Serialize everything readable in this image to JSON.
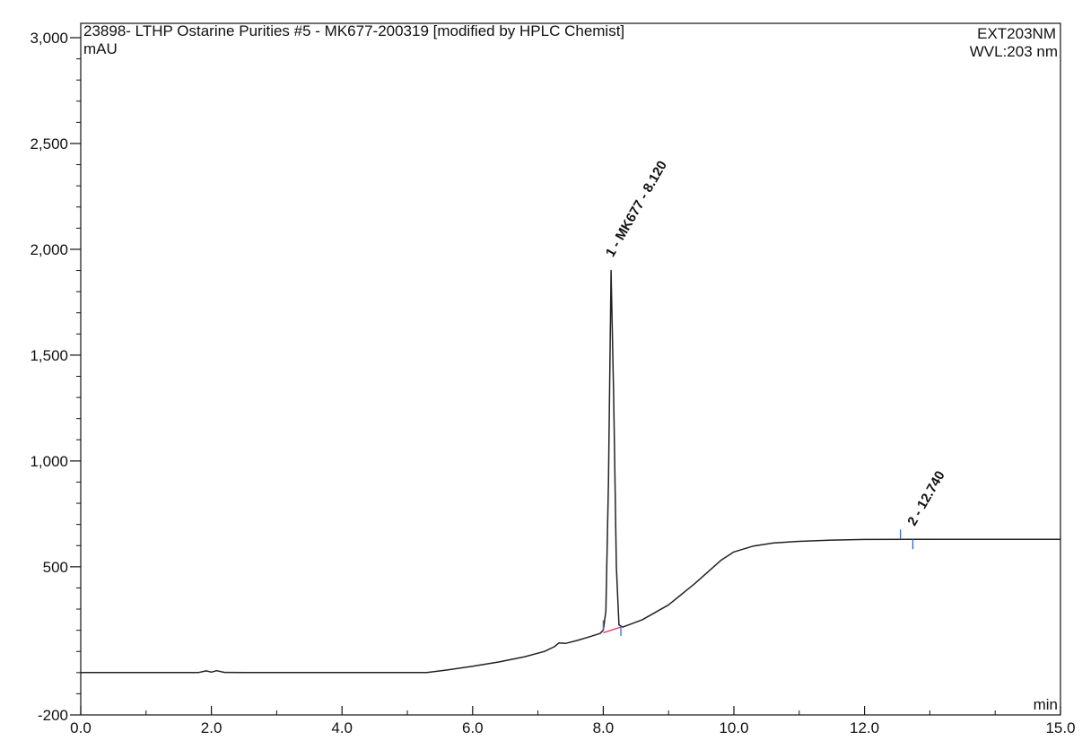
{
  "header": {
    "title": "23898- LTHP Ostarine Purities #5 - MK677-200319 [modified by HPLC Chemist]",
    "channel": "EXT203NM",
    "wavelength": "WVL:203 nm"
  },
  "chart_data": {
    "type": "line",
    "title": "23898- LTHP Ostarine Purities #5 - MK677-200319 [modified by HPLC Chemist]",
    "xlabel": "min",
    "ylabel": "mAU",
    "xlim": [
      0.0,
      15.0
    ],
    "ylim": [
      -200,
      3000
    ],
    "x_ticks": [
      "0.0",
      "2.0",
      "4.0",
      "6.0",
      "8.0",
      "10.0",
      "12.0",
      "15.0"
    ],
    "x_tick_values": [
      0,
      2,
      4,
      6,
      8,
      10,
      12,
      15
    ],
    "y_ticks": [
      "-200",
      "500",
      "1,000",
      "1,500",
      "2,000",
      "2,500",
      "3,000"
    ],
    "y_tick_values": [
      -200,
      500,
      1000,
      1500,
      2000,
      2500,
      3000
    ],
    "grid": false,
    "series": [
      {
        "color": "#222222",
        "points": [
          [
            0.0,
            0
          ],
          [
            1.8,
            0
          ],
          [
            1.92,
            8
          ],
          [
            2.0,
            2
          ],
          [
            2.08,
            9
          ],
          [
            2.2,
            1
          ],
          [
            2.5,
            0
          ],
          [
            4.0,
            0
          ],
          [
            5.3,
            0
          ],
          [
            5.6,
            12
          ],
          [
            6.0,
            30
          ],
          [
            6.4,
            50
          ],
          [
            6.8,
            75
          ],
          [
            7.1,
            100
          ],
          [
            7.25,
            122
          ],
          [
            7.32,
            140
          ],
          [
            7.42,
            138
          ],
          [
            7.6,
            152
          ],
          [
            7.8,
            170
          ],
          [
            7.95,
            185
          ],
          [
            8.0,
            200
          ],
          [
            8.04,
            290
          ],
          [
            8.08,
            900
          ],
          [
            8.12,
            1900
          ],
          [
            8.16,
            1300
          ],
          [
            8.2,
            500
          ],
          [
            8.24,
            225
          ],
          [
            8.3,
            215
          ],
          [
            8.6,
            250
          ],
          [
            9.0,
            320
          ],
          [
            9.4,
            420
          ],
          [
            9.8,
            530
          ],
          [
            10.0,
            570
          ],
          [
            10.3,
            598
          ],
          [
            10.6,
            612
          ],
          [
            11.0,
            620
          ],
          [
            11.5,
            626
          ],
          [
            12.0,
            629
          ],
          [
            12.74,
            630
          ],
          [
            13.5,
            630
          ],
          [
            15.0,
            630
          ]
        ]
      }
    ],
    "integration_baseline": {
      "color": "#e0406a",
      "points": [
        [
          8.0,
          188
        ],
        [
          8.27,
          215
        ]
      ]
    },
    "peaks": [
      {
        "label": "1 - MK677 - 8.120",
        "rt": 8.12,
        "height": 1900
      },
      {
        "label": "2 - 12.740",
        "rt": 12.74,
        "height": 630
      }
    ],
    "peak_markers": {
      "color": "#3366cc",
      "x": [
        8.0,
        8.27,
        12.55,
        12.74
      ]
    }
  }
}
